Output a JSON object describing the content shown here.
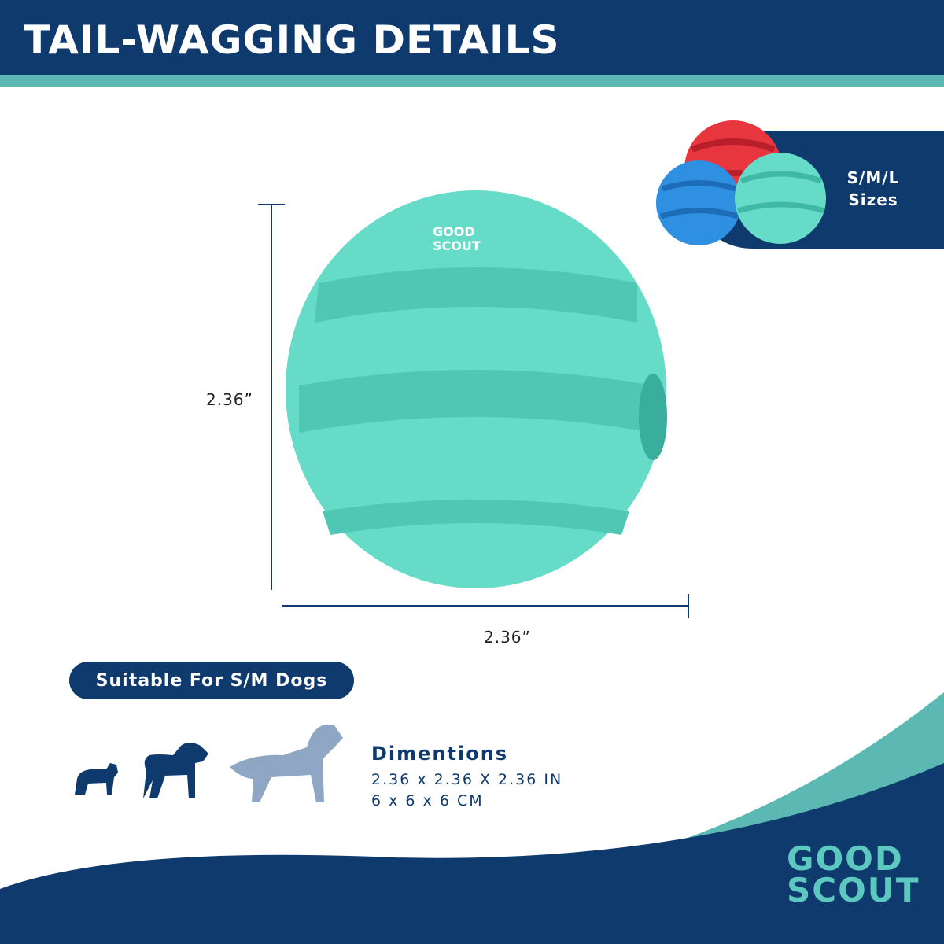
{
  "header": {
    "title": "TAIL-WAGGING DETAILS"
  },
  "sizes": {
    "line1": "S/M/L",
    "line2": "Sizes"
  },
  "dimensions_markers": {
    "height": "2.36”",
    "width": "2.36”"
  },
  "suitability": {
    "label": "Suitable For S/M Dogs"
  },
  "dog_icons": [
    "small-dog-icon",
    "medium-dog-icon",
    "large-dog-icon"
  ],
  "specs": {
    "title": "Dimentions",
    "inches": "2.36 x 2.36 X 2.36 IN",
    "cm": "6 x 6 x 6 CM"
  },
  "brand": {
    "line1": "GOOD",
    "line2": "SCOUT",
    "ball_logo": "GOOD SCOUT"
  },
  "colors": {
    "navy": "#0f3a6e",
    "teal": "#5cb8b2",
    "ball_mint": "#66dcc8",
    "ball_red": "#e8363f",
    "ball_blue": "#2f8fe0",
    "large_dog": "#8fa6c4"
  }
}
